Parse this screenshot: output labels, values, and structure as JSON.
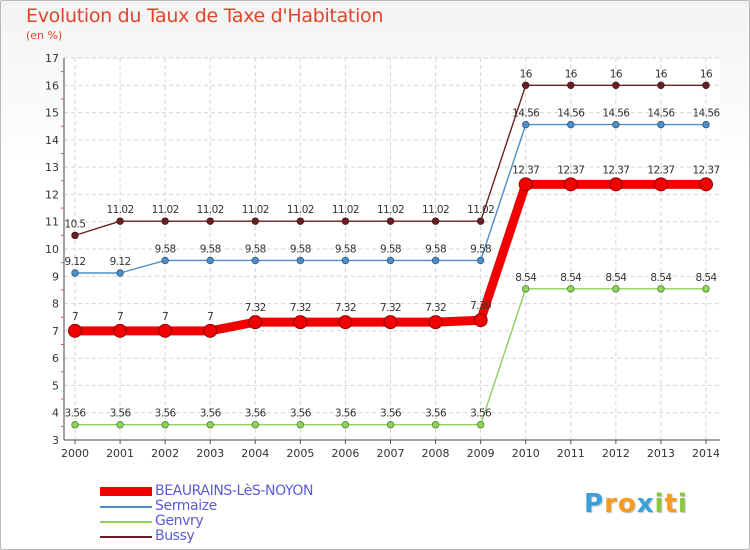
{
  "header": {
    "title": "Evolution du Taux de Taxe d'Habitation",
    "unit": "(en %)"
  },
  "brand": {
    "letters": [
      "P",
      "r",
      "o",
      "x",
      "i",
      "t",
      "i"
    ],
    "colors": [
      "#3aa0dc",
      "#f59b1e",
      "#f59b1e",
      "#3aa0dc",
      "#8cc63f",
      "#f59b1e",
      "#8cc63f"
    ]
  },
  "chart_data": {
    "type": "line",
    "title": "Evolution du Taux de Taxe d'Habitation",
    "ylabel": "(en %)",
    "xlabel": "",
    "x": [
      "2000",
      "2001",
      "2002",
      "2003",
      "2004",
      "2005",
      "2006",
      "2007",
      "2008",
      "2009",
      "2010",
      "2011",
      "2012",
      "2013",
      "2014"
    ],
    "ylim": [
      3,
      17
    ],
    "yticks": [
      3,
      4,
      5,
      6,
      7,
      8,
      9,
      10,
      11,
      12,
      13,
      14,
      15,
      16,
      17
    ],
    "grid": true,
    "legend": "bottom-left",
    "series": [
      {
        "name": "Bussy",
        "color": "#6b1f22",
        "values": [
          10.5,
          11.02,
          11.02,
          11.02,
          11.02,
          11.02,
          11.02,
          11.02,
          11.02,
          11.02,
          16,
          16,
          16,
          16,
          16
        ],
        "labels": [
          "10.5",
          "11.02",
          "11.02",
          "11.02",
          "11.02",
          "11.02",
          "11.02",
          "11.02",
          "11.02",
          "11.02",
          "16",
          "16",
          "16",
          "16",
          "16"
        ]
      },
      {
        "name": "Sermaize",
        "color": "#4f8fc9",
        "values": [
          9.12,
          9.12,
          9.58,
          9.58,
          9.58,
          9.58,
          9.58,
          9.58,
          9.58,
          9.58,
          14.56,
          14.56,
          14.56,
          14.56,
          14.56
        ],
        "labels": [
          "9.12",
          "9.12",
          "9.58",
          "9.58",
          "9.58",
          "9.58",
          "9.58",
          "9.58",
          "9.58",
          "9.58",
          "14.56",
          "14.56",
          "14.56",
          "14.56",
          "14.56"
        ]
      },
      {
        "name": "Genvry",
        "color": "#8ed35a",
        "values": [
          3.56,
          3.56,
          3.56,
          3.56,
          3.56,
          3.56,
          3.56,
          3.56,
          3.56,
          3.56,
          8.54,
          8.54,
          8.54,
          8.54,
          8.54
        ],
        "labels": [
          "3.56",
          "3.56",
          "3.56",
          "3.56",
          "3.56",
          "3.56",
          "3.56",
          "3.56",
          "3.56",
          "3.56",
          "8.54",
          "8.54",
          "8.54",
          "8.54",
          "8.54"
        ]
      },
      {
        "name": "BEAURAINS-LèS-NOYON",
        "color": "#f20000",
        "values": [
          7,
          7,
          7,
          7,
          7.32,
          7.32,
          7.32,
          7.32,
          7.32,
          7.39,
          12.37,
          12.37,
          12.37,
          12.37,
          12.37
        ],
        "labels": [
          "7",
          "7",
          "7",
          "7",
          "7.32",
          "7.32",
          "7.32",
          "7.32",
          "7.32",
          "7.39",
          "12.37",
          "12.37",
          "12.37",
          "12.37",
          "12.37"
        ]
      }
    ],
    "legend_order": [
      "BEAURAINS-LèS-NOYON",
      "Sermaize",
      "Genvry",
      "Bussy"
    ]
  }
}
